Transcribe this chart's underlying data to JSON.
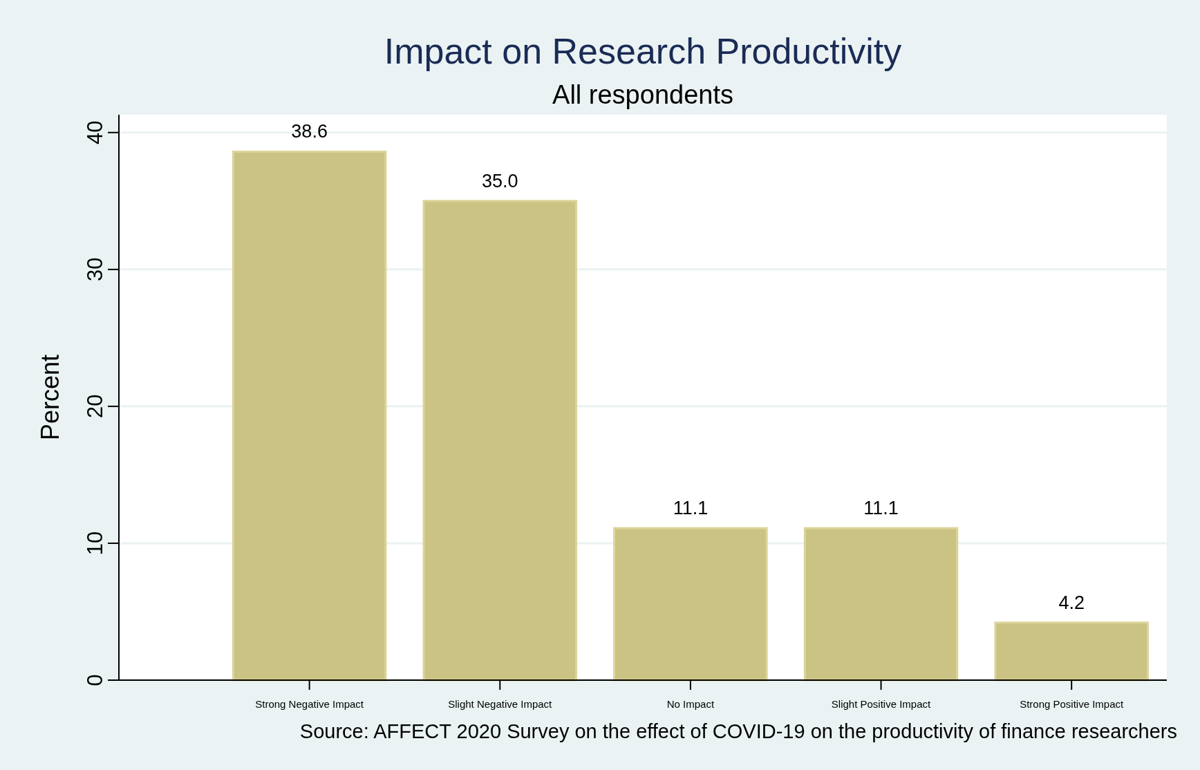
{
  "chart_data": {
    "type": "bar",
    "title": "Impact on Research Productivity",
    "subtitle": "All respondents",
    "ylabel": "Percent",
    "categories": [
      "Strong Negative Impact",
      "Slight Negative Impact",
      "No Impact",
      "Slight Positive Impact",
      "Strong Positive Impact"
    ],
    "values": [
      38.6,
      35.0,
      11.1,
      11.1,
      4.2
    ],
    "value_labels": [
      "38.6",
      "35.0",
      "11.1",
      "11.1",
      "4.2"
    ],
    "color": "#cbc383",
    "ylim": [
      0,
      41.3
    ],
    "yticks": [
      0,
      10,
      20,
      30,
      40
    ],
    "grid": "y",
    "annotations": [
      "Source: AFFECT 2020 Survey on the effect of COVID-19 on the productivity of finance researchers"
    ]
  }
}
